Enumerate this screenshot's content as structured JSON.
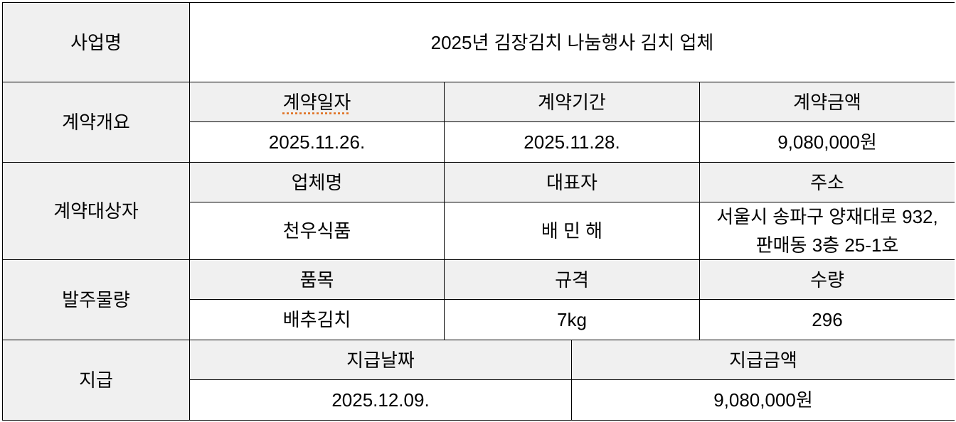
{
  "project": {
    "label": "사업명",
    "value": "2025년 김장김치 나눔행사 김치 업체"
  },
  "contract": {
    "label": "계약개요",
    "headers": [
      "계약일자",
      "계약기간",
      "계약금액"
    ],
    "values": [
      "2025.11.26.",
      "2025.11.28.",
      "9,080,000원"
    ]
  },
  "party": {
    "label": "계약대상자",
    "headers": [
      "업체명",
      "대표자",
      "주소"
    ],
    "values": [
      "천우식품",
      "배 민 해",
      "서울시 송파구 양재대로 932, 판매동 3층 25-1호"
    ]
  },
  "order": {
    "label": "발주물량",
    "headers": [
      "품목",
      "규격",
      "수량"
    ],
    "values": [
      "배추김치",
      "7kg",
      "296"
    ]
  },
  "payment": {
    "label": "지급",
    "headers": [
      "지급날짜",
      "지급금액"
    ],
    "values": [
      "2025.12.09.",
      "9,080,000원"
    ]
  },
  "colors": {
    "header_bg": "#f0f0f0",
    "border": "#000000"
  }
}
